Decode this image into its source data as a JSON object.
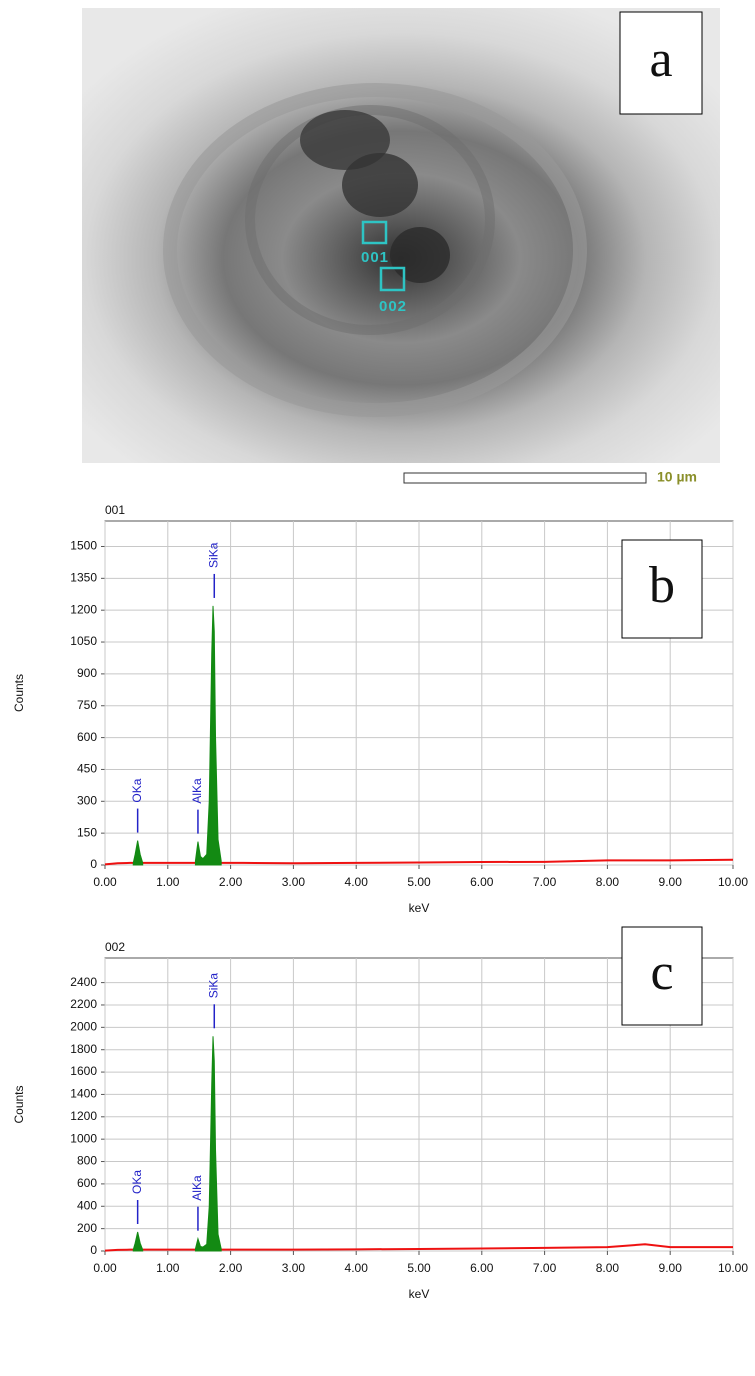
{
  "image": {
    "label": "a",
    "regions": [
      "001",
      "002"
    ],
    "scale_bar": "10 µm"
  },
  "chart_data": [
    {
      "type": "spectrum",
      "title": "001",
      "panel": "b",
      "xlabel": "keV",
      "ylabel": "Counts",
      "xlim": [
        0,
        10
      ],
      "ylim": [
        0,
        1620
      ],
      "xticks": [
        {
          "value": 0,
          "label": "0.00"
        },
        {
          "value": 1,
          "label": "1.00"
        },
        {
          "value": 2,
          "label": "2.00"
        },
        {
          "value": 3,
          "label": "3.00"
        },
        {
          "value": 4,
          "label": "4.00"
        },
        {
          "value": 5,
          "label": "5.00"
        },
        {
          "value": 6,
          "label": "6.00"
        },
        {
          "value": 7,
          "label": "7.00"
        },
        {
          "value": 8,
          "label": "8.00"
        },
        {
          "value": 9,
          "label": "9.00"
        },
        {
          "value": 10,
          "label": "10.00"
        }
      ],
      "yticks": [
        0,
        150,
        300,
        450,
        600,
        750,
        900,
        1050,
        1200,
        1350,
        1500
      ],
      "grid": true,
      "x": [
        0,
        0.2,
        0.4,
        0.45,
        0.48,
        0.52,
        0.56,
        0.6,
        0.7,
        1.0,
        1.3,
        1.4,
        1.44,
        1.48,
        1.52,
        1.56,
        1.62,
        1.66,
        1.7,
        1.72,
        1.74,
        1.76,
        1.8,
        1.85,
        1.9,
        2.2,
        3,
        4,
        5,
        6,
        7,
        8,
        8.6,
        9,
        10
      ],
      "series": [
        {
          "color": "#ee1111",
          "fill": false,
          "values": [
            3,
            8,
            10,
            10,
            10,
            10,
            10,
            10,
            10,
            10,
            10,
            10,
            10,
            10,
            10,
            10,
            10,
            10,
            10,
            10,
            10,
            10,
            10,
            10,
            10,
            10,
            8,
            10,
            12,
            14,
            15,
            22,
            22,
            22,
            25
          ]
        },
        {
          "color": "#138a13",
          "fill": true,
          "values": [
            null,
            null,
            null,
            10,
            50,
            115,
            50,
            10,
            null,
            null,
            null,
            null,
            20,
            110,
            40,
            30,
            50,
            300,
            1000,
            1220,
            1100,
            600,
            120,
            20,
            null,
            null,
            null,
            null,
            null,
            null,
            null,
            null,
            null,
            null,
            null
          ]
        }
      ],
      "annotations": [
        {
          "text": "OKa",
          "x": 0.52
        },
        {
          "text": "AlKa",
          "x": 1.48
        },
        {
          "text": "SiKa",
          "x": 1.74
        }
      ]
    },
    {
      "type": "spectrum",
      "title": "002",
      "panel": "c",
      "xlabel": "keV",
      "ylabel": "Counts",
      "xlim": [
        0,
        10
      ],
      "ylim": [
        0,
        2620
      ],
      "xticks": [
        {
          "value": 0,
          "label": "0.00"
        },
        {
          "value": 1,
          "label": "1.00"
        },
        {
          "value": 2,
          "label": "2.00"
        },
        {
          "value": 3,
          "label": "3.00"
        },
        {
          "value": 4,
          "label": "4.00"
        },
        {
          "value": 5,
          "label": "5.00"
        },
        {
          "value": 6,
          "label": "6.00"
        },
        {
          "value": 7,
          "label": "7.00"
        },
        {
          "value": 8,
          "label": "8.00"
        },
        {
          "value": 9,
          "label": "9.00"
        },
        {
          "value": 10,
          "label": "10.00"
        }
      ],
      "yticks": [
        0,
        200,
        400,
        600,
        800,
        1000,
        1200,
        1400,
        1600,
        1800,
        2000,
        2200,
        2400
      ],
      "grid": true,
      "x": [
        0,
        0.2,
        0.4,
        0.45,
        0.48,
        0.52,
        0.56,
        0.6,
        0.7,
        1.0,
        1.3,
        1.4,
        1.44,
        1.48,
        1.52,
        1.56,
        1.62,
        1.66,
        1.7,
        1.72,
        1.74,
        1.76,
        1.8,
        1.85,
        1.9,
        2.2,
        3,
        4,
        5,
        6,
        7,
        8,
        8.6,
        9,
        10
      ],
      "series": [
        {
          "color": "#ee1111",
          "fill": false,
          "values": [
            3,
            10,
            12,
            12,
            12,
            12,
            12,
            12,
            12,
            12,
            12,
            12,
            12,
            12,
            12,
            12,
            12,
            12,
            12,
            12,
            12,
            12,
            12,
            12,
            12,
            12,
            12,
            15,
            18,
            22,
            28,
            35,
            60,
            35,
            35
          ]
        },
        {
          "color": "#138a13",
          "fill": true,
          "values": [
            null,
            null,
            null,
            12,
            70,
            170,
            70,
            12,
            null,
            null,
            null,
            null,
            20,
            110,
            40,
            35,
            60,
            400,
            1500,
            1920,
            1700,
            900,
            150,
            20,
            null,
            null,
            null,
            null,
            null,
            null,
            null,
            null,
            null,
            null,
            null
          ]
        }
      ],
      "annotations": [
        {
          "text": "OKa",
          "x": 0.52
        },
        {
          "text": "AlKa",
          "x": 1.48
        },
        {
          "text": "SiKa",
          "x": 1.74
        }
      ]
    }
  ]
}
